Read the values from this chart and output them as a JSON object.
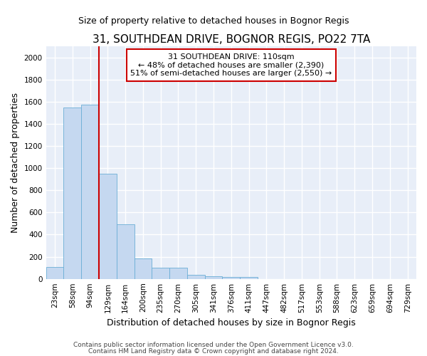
{
  "title1": "31, SOUTHDEAN DRIVE, BOGNOR REGIS, PO22 7TA",
  "title2": "Size of property relative to detached houses in Bognor Regis",
  "xlabel": "Distribution of detached houses by size in Bognor Regis",
  "ylabel": "Number of detached properties",
  "bin_labels": [
    "23sqm",
    "58sqm",
    "94sqm",
    "129sqm",
    "164sqm",
    "200sqm",
    "235sqm",
    "270sqm",
    "305sqm",
    "341sqm",
    "376sqm",
    "411sqm",
    "447sqm",
    "482sqm",
    "517sqm",
    "553sqm",
    "588sqm",
    "623sqm",
    "659sqm",
    "694sqm",
    "729sqm"
  ],
  "bar_heights": [
    110,
    1545,
    1570,
    950,
    490,
    185,
    100,
    100,
    35,
    25,
    15,
    15,
    0,
    0,
    0,
    0,
    0,
    0,
    0,
    0,
    0
  ],
  "bar_color": "#c5d8f0",
  "bar_edge_color": "#6baed6",
  "bg_color": "#e8eef8",
  "grid_color": "#ffffff",
  "red_line_x": 2.5,
  "annotation_text": "31 SOUTHDEAN DRIVE: 110sqm\n← 48% of detached houses are smaller (2,390)\n51% of semi-detached houses are larger (2,550) →",
  "annotation_box_color": "#ffffff",
  "annotation_box_edge": "#cc0000",
  "red_line_color": "#cc0000",
  "ylim": [
    0,
    2100
  ],
  "yticks": [
    0,
    200,
    400,
    600,
    800,
    1000,
    1200,
    1400,
    1600,
    1800,
    2000
  ],
  "footer1": "Contains HM Land Registry data © Crown copyright and database right 2024.",
  "footer2": "Contains public sector information licensed under the Open Government Licence v3.0.",
  "title_fontsize": 11,
  "subtitle_fontsize": 9,
  "annotation_fontsize": 8,
  "ylabel_fontsize": 9,
  "xlabel_fontsize": 9,
  "tick_fontsize": 7.5,
  "footer_fontsize": 6.5
}
